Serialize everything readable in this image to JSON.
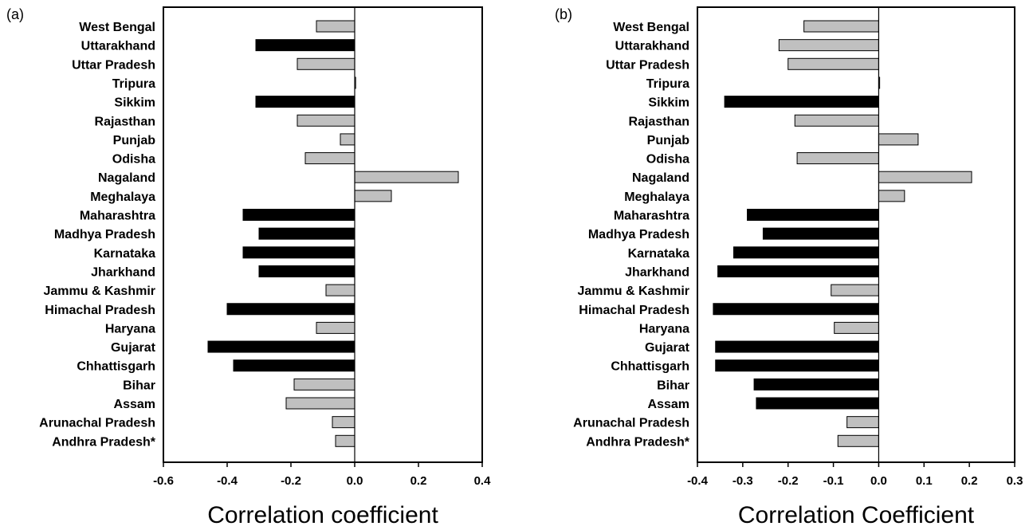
{
  "chart_data": [
    {
      "type": "bar",
      "orientation": "horizontal",
      "panel_label": "(a)",
      "xlabel": "Correlation coefficient",
      "xlim": [
        -0.6,
        0.4
      ],
      "xticks": [
        "-0.6",
        "-0.4",
        "-0.2",
        "0.0",
        "0.2",
        "0.4"
      ],
      "categories": [
        "West Bengal",
        "Uttarakhand",
        "Uttar Pradesh",
        "Tripura",
        "Sikkim",
        "Rajasthan",
        "Punjab",
        "Odisha",
        "Nagaland",
        "Meghalaya",
        "Maharashtra",
        "Madhya Pradesh",
        "Karnataka",
        "Jharkhand",
        "Jammu & Kashmir",
        "Himachal Pradesh",
        "Haryana",
        "Gujarat",
        "Chhattisgarh",
        "Bihar",
        "Assam",
        "Arunachal Pradesh",
        "Andhra Pradesh*"
      ],
      "values": [
        -0.12,
        -0.31,
        -0.18,
        0.0,
        -0.31,
        -0.18,
        -0.045,
        -0.155,
        0.325,
        0.115,
        -0.35,
        -0.3,
        -0.35,
        -0.3,
        -0.09,
        -0.4,
        -0.12,
        -0.46,
        -0.38,
        -0.19,
        -0.215,
        -0.07,
        -0.06
      ],
      "significant": [
        false,
        true,
        false,
        false,
        true,
        false,
        false,
        false,
        false,
        false,
        true,
        true,
        true,
        true,
        false,
        true,
        false,
        true,
        true,
        false,
        false,
        false,
        false
      ],
      "colors": {
        "significant": "#000000",
        "not_significant": "#c0c0c0"
      }
    },
    {
      "type": "bar",
      "orientation": "horizontal",
      "panel_label": "(b)",
      "xlabel": "Correlation Coefficient",
      "xlim": [
        -0.4,
        0.3
      ],
      "xticks": [
        "-0.4",
        "-0.3",
        "-0.2",
        "-0.1",
        "0.0",
        "0.1",
        "0.2",
        "0.3"
      ],
      "categories": [
        "West Bengal",
        "Uttarakhand",
        "Uttar Pradesh",
        "Tripura",
        "Sikkim",
        "Rajasthan",
        "Punjab",
        "Odisha",
        "Nagaland",
        "Meghalaya",
        "Maharashtra",
        "Madhya Pradesh",
        "Karnataka",
        "Jharkhand",
        "Jammu & Kashmir",
        "Himachal Pradesh",
        "Haryana",
        "Gujarat",
        "Chhattisgarh",
        "Bihar",
        "Assam",
        "Arunachal Pradesh",
        "Andhra Pradesh*"
      ],
      "values": [
        -0.165,
        -0.22,
        -0.2,
        0.002,
        -0.34,
        -0.185,
        0.087,
        -0.18,
        0.205,
        0.057,
        -0.29,
        -0.255,
        -0.32,
        -0.355,
        -0.105,
        -0.365,
        -0.098,
        -0.36,
        -0.36,
        -0.275,
        -0.27,
        -0.07,
        -0.09
      ],
      "significant": [
        false,
        false,
        false,
        false,
        true,
        false,
        false,
        false,
        false,
        false,
        true,
        true,
        true,
        true,
        false,
        true,
        false,
        true,
        true,
        true,
        true,
        false,
        false
      ],
      "colors": {
        "significant": "#000000",
        "not_significant": "#c0c0c0"
      }
    }
  ]
}
